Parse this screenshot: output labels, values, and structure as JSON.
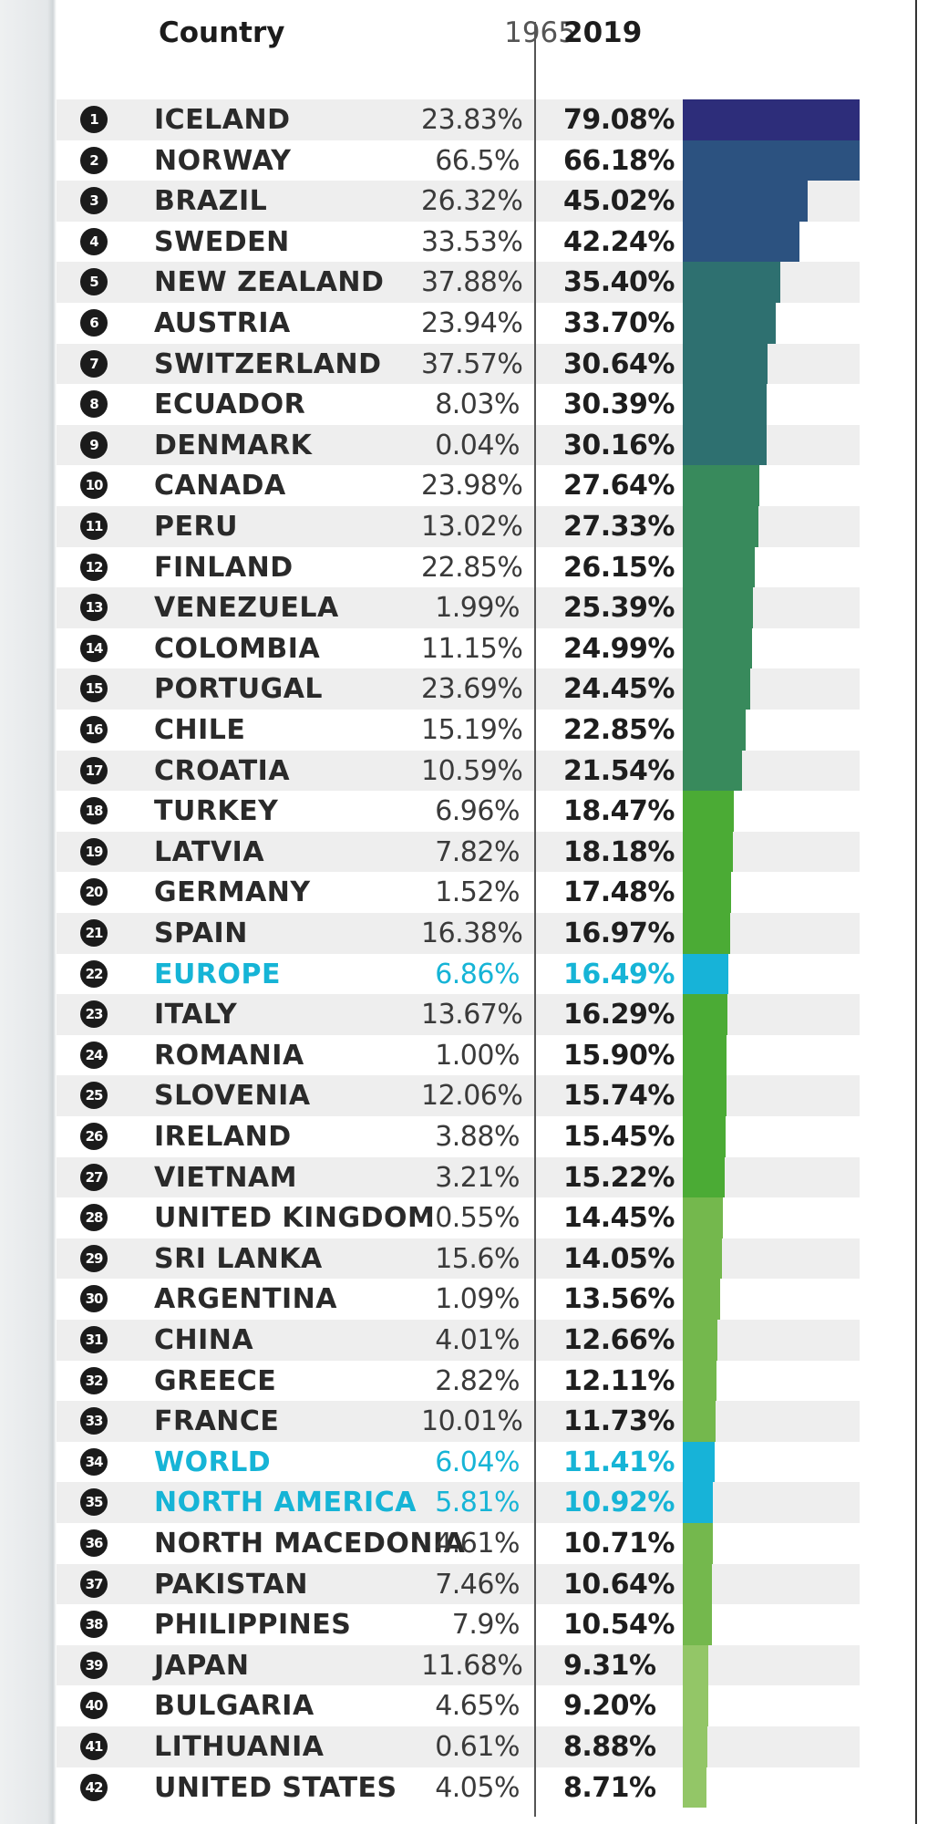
{
  "header": {
    "country": "Country",
    "year_a": "1965",
    "year_b": "2019"
  },
  "chart_data": {
    "type": "bar",
    "columns": [
      "Country",
      "1965",
      "2019"
    ],
    "rows": [
      {
        "rank": "1",
        "name": "ICELAND",
        "v1965": "23.83%",
        "v2019": "79.08%",
        "value": 79.08,
        "color": "#2d2d7a",
        "region": false,
        "tick": "normal"
      },
      {
        "rank": "2",
        "name": "NORWAY",
        "v1965": "66.5%",
        "v2019": "66.18%",
        "value": 66.18,
        "color": "#2c5280",
        "region": false,
        "tick": "red"
      },
      {
        "rank": "3",
        "name": "BRAZIL",
        "v1965": "26.32%",
        "v2019": "45.02%",
        "value": 45.02,
        "color": "#2c5280",
        "region": false,
        "tick": "normal"
      },
      {
        "rank": "4",
        "name": "SWEDEN",
        "v1965": "33.53%",
        "v2019": "42.24%",
        "value": 42.24,
        "color": "#2c5280",
        "region": false,
        "tick": "normal"
      },
      {
        "rank": "5",
        "name": "NEW ZEALAND",
        "v1965": "37.88%",
        "v2019": "35.40%",
        "value": 35.4,
        "color": "#2e7070",
        "region": false,
        "tick": "red"
      },
      {
        "rank": "6",
        "name": "AUSTRIA",
        "v1965": "23.94%",
        "v2019": "33.70%",
        "value": 33.7,
        "color": "#2e7070",
        "region": false,
        "tick": "normal"
      },
      {
        "rank": "7",
        "name": "SWITZERLAND",
        "v1965": "37.57%",
        "v2019": "30.64%",
        "value": 30.64,
        "color": "#2e7070",
        "region": false,
        "tick": "red"
      },
      {
        "rank": "8",
        "name": "ECUADOR",
        "v1965": "8.03%",
        "v2019": "30.39%",
        "value": 30.39,
        "color": "#2e7070",
        "region": false,
        "tick": "normal"
      },
      {
        "rank": "9",
        "name": "DENMARK",
        "v1965": "0.04%",
        "v2019": "30.16%",
        "value": 30.16,
        "color": "#2e7070",
        "region": false,
        "tick": "normal"
      },
      {
        "rank": "10",
        "name": "CANADA",
        "v1965": "23.98%",
        "v2019": "27.64%",
        "value": 27.64,
        "color": "#388a5c",
        "region": false,
        "tick": "normal"
      },
      {
        "rank": "11",
        "name": "PERU",
        "v1965": "13.02%",
        "v2019": "27.33%",
        "value": 27.33,
        "color": "#388a5c",
        "region": false,
        "tick": "normal"
      },
      {
        "rank": "12",
        "name": "FINLAND",
        "v1965": "22.85%",
        "v2019": "26.15%",
        "value": 26.15,
        "color": "#388a5c",
        "region": false,
        "tick": "normal"
      },
      {
        "rank": "13",
        "name": "VENEZUELA",
        "v1965": "1.99%",
        "v2019": "25.39%",
        "value": 25.39,
        "color": "#388a5c",
        "region": false,
        "tick": "normal"
      },
      {
        "rank": "14",
        "name": "COLOMBIA",
        "v1965": "11.15%",
        "v2019": "24.99%",
        "value": 24.99,
        "color": "#388a5c",
        "region": false,
        "tick": "normal"
      },
      {
        "rank": "15",
        "name": "PORTUGAL",
        "v1965": "23.69%",
        "v2019": "24.45%",
        "value": 24.45,
        "color": "#388a5c",
        "region": false,
        "tick": "normal"
      },
      {
        "rank": "16",
        "name": "CHILE",
        "v1965": "15.19%",
        "v2019": "22.85%",
        "value": 22.85,
        "color": "#388a5c",
        "region": false,
        "tick": "normal"
      },
      {
        "rank": "17",
        "name": "CROATIA",
        "v1965": "10.59%",
        "v2019": "21.54%",
        "value": 21.54,
        "color": "#388a5c",
        "region": false,
        "tick": "normal"
      },
      {
        "rank": "18",
        "name": "TURKEY",
        "v1965": "6.96%",
        "v2019": "18.47%",
        "value": 18.47,
        "color": "#4bab35",
        "region": false,
        "tick": "normal"
      },
      {
        "rank": "19",
        "name": "LATVIA",
        "v1965": "7.82%",
        "v2019": "18.18%",
        "value": 18.18,
        "color": "#4bab35",
        "region": false,
        "tick": "normal"
      },
      {
        "rank": "20",
        "name": "GERMANY",
        "v1965": "1.52%",
        "v2019": "17.48%",
        "value": 17.48,
        "color": "#4bab35",
        "region": false,
        "tick": "normal"
      },
      {
        "rank": "21",
        "name": "SPAIN",
        "v1965": "16.38%",
        "v2019": "16.97%",
        "value": 16.97,
        "color": "#4bab35",
        "region": false,
        "tick": "normal"
      },
      {
        "rank": "22",
        "name": "EUROPE",
        "v1965": "6.86%",
        "v2019": "16.49%",
        "value": 16.49,
        "color": "#17b3d8",
        "region": true,
        "tick": "cyan"
      },
      {
        "rank": "23",
        "name": "ITALY",
        "v1965": "13.67%",
        "v2019": "16.29%",
        "value": 16.29,
        "color": "#4bab35",
        "region": false,
        "tick": "normal"
      },
      {
        "rank": "24",
        "name": "ROMANIA",
        "v1965": "1.00%",
        "v2019": "15.90%",
        "value": 15.9,
        "color": "#4bab35",
        "region": false,
        "tick": "normal"
      },
      {
        "rank": "25",
        "name": "SLOVENIA",
        "v1965": "12.06%",
        "v2019": "15.74%",
        "value": 15.74,
        "color": "#4bab35",
        "region": false,
        "tick": "normal"
      },
      {
        "rank": "26",
        "name": "IRELAND",
        "v1965": "3.88%",
        "v2019": "15.45%",
        "value": 15.45,
        "color": "#4bab35",
        "region": false,
        "tick": "normal"
      },
      {
        "rank": "27",
        "name": "VIETNAM",
        "v1965": "3.21%",
        "v2019": "15.22%",
        "value": 15.22,
        "color": "#4bab35",
        "region": false,
        "tick": "normal"
      },
      {
        "rank": "28",
        "name": "UNITED KINGDOM",
        "v1965": "0.55%",
        "v2019": "14.45%",
        "value": 14.45,
        "color": "#74b84d",
        "region": false,
        "tick": "normal"
      },
      {
        "rank": "29",
        "name": "SRI LANKA",
        "v1965": "15.6%",
        "v2019": "14.05%",
        "value": 14.05,
        "color": "#74b84d",
        "region": false,
        "tick": "red"
      },
      {
        "rank": "30",
        "name": "ARGENTINA",
        "v1965": "1.09%",
        "v2019": "13.56%",
        "value": 13.56,
        "color": "#74b84d",
        "region": false,
        "tick": "normal"
      },
      {
        "rank": "31",
        "name": "CHINA",
        "v1965": "4.01%",
        "v2019": "12.66%",
        "value": 12.66,
        "color": "#74b84d",
        "region": false,
        "tick": "normal"
      },
      {
        "rank": "32",
        "name": "GREECE",
        "v1965": "2.82%",
        "v2019": "12.11%",
        "value": 12.11,
        "color": "#74b84d",
        "region": false,
        "tick": "normal"
      },
      {
        "rank": "33",
        "name": "FRANCE",
        "v1965": "10.01%",
        "v2019": "11.73%",
        "value": 11.73,
        "color": "#74b84d",
        "region": false,
        "tick": "normal"
      },
      {
        "rank": "34",
        "name": "WORLD",
        "v1965": "6.04%",
        "v2019": "11.41%",
        "value": 11.41,
        "color": "#17b3d8",
        "region": true,
        "tick": "cyan"
      },
      {
        "rank": "35",
        "name": "NORTH AMERICA",
        "v1965": "5.81%",
        "v2019": "10.92%",
        "value": 10.92,
        "color": "#17b3d8",
        "region": true,
        "tick": "cyan"
      },
      {
        "rank": "36",
        "name": "NORTH MACEDONIA",
        "v1965": "4.61%",
        "v2019": "10.71%",
        "value": 10.71,
        "color": "#74b84d",
        "region": false,
        "tick": "normal"
      },
      {
        "rank": "37",
        "name": "PAKISTAN",
        "v1965": "7.46%",
        "v2019": "10.64%",
        "value": 10.64,
        "color": "#74b84d",
        "region": false,
        "tick": "normal"
      },
      {
        "rank": "38",
        "name": "PHILIPPINES",
        "v1965": "7.9%",
        "v2019": "10.54%",
        "value": 10.54,
        "color": "#74b84d",
        "region": false,
        "tick": "normal"
      },
      {
        "rank": "39",
        "name": "JAPAN",
        "v1965": "11.68%",
        "v2019": "9.31%",
        "value": 9.31,
        "color": "#93c667",
        "region": false,
        "tick": "red"
      },
      {
        "rank": "40",
        "name": "BULGARIA",
        "v1965": "4.65%",
        "v2019": "9.20%",
        "value": 9.2,
        "color": "#93c667",
        "region": false,
        "tick": "normal"
      },
      {
        "rank": "41",
        "name": "LITHUANIA",
        "v1965": "0.61%",
        "v2019": "8.88%",
        "value": 8.88,
        "color": "#93c667",
        "region": false,
        "tick": "normal"
      },
      {
        "rank": "42",
        "name": "UNITED STATES",
        "v1965": "4.05%",
        "v2019": "8.71%",
        "value": 8.71,
        "color": "#93c667",
        "region": false,
        "tick": "normal"
      }
    ],
    "xlim": [
      0,
      79.08
    ],
    "grid": false
  }
}
